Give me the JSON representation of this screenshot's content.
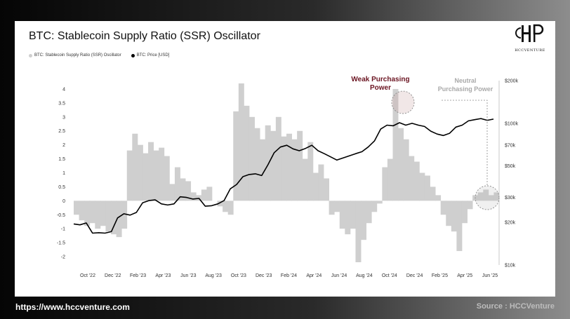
{
  "footer": {
    "url": "https://www.hccventure.com",
    "source": "Source : HCCVenture"
  },
  "brand": {
    "logo_text": "HCCVENTURE"
  },
  "chart_data": {
    "type": "area",
    "title": "BTC: Stablecoin Supply Ratio (SSR) Oscillator",
    "legend": {
      "placement": "top-left"
    },
    "series": [
      {
        "name": "BTC: Stablecoin Supply Ratio (SSR) Oscillator",
        "kind": "area",
        "axis": "left",
        "color": "#cfcfcf"
      },
      {
        "name": "BTC: Price [USD]",
        "kind": "line",
        "axis": "right",
        "color": "#000000"
      }
    ],
    "x_ticks": [
      "Oct '22",
      "Dec '22",
      "Feb '23",
      "Apr '23",
      "Jun '23",
      "Aug '23",
      "Oct '23",
      "Dec '23",
      "Feb '24",
      "Apr '24",
      "Jun '24",
      "Aug '24",
      "Oct '24",
      "Dec '24",
      "Feb '25",
      "Apr '25",
      "Jun '25"
    ],
    "y_left": {
      "ticks": [
        4,
        3.5,
        3,
        2.5,
        2,
        1.5,
        1,
        0.5,
        0,
        -0.5,
        -1,
        -1.5,
        -2
      ],
      "labels": [
        "4",
        "3.5",
        "3",
        "2.5",
        "2",
        "1.5",
        "1",
        "0.5",
        "0",
        "-0.5",
        "-1",
        "-1.5",
        "-2"
      ],
      "range": [
        -2.3,
        4.3
      ]
    },
    "y_right": {
      "scale": "log",
      "ticks": [
        200000,
        100000,
        70000,
        50000,
        30000,
        20000,
        10000
      ],
      "labels": [
        "$200k",
        "$100k",
        "$70k",
        "$50k",
        "$30k",
        "$20k",
        "$10k"
      ],
      "range": [
        10000,
        200000
      ]
    },
    "ssr_values": [
      -0.5,
      -0.7,
      -0.9,
      -0.8,
      -1.0,
      -0.9,
      -1.1,
      -1.2,
      -1.3,
      -1.0,
      1.8,
      2.4,
      2.0,
      1.7,
      2.1,
      1.8,
      1.9,
      1.6,
      0.6,
      1.2,
      0.8,
      0.7,
      0.3,
      0.2,
      0.4,
      0.5,
      0.0,
      -0.2,
      -0.4,
      -0.5,
      3.2,
      4.2,
      3.4,
      3.0,
      2.6,
      2.2,
      2.7,
      2.5,
      3.0,
      2.3,
      2.4,
      2.2,
      2.5,
      1.5,
      2.1,
      1.0,
      1.3,
      0.8,
      -0.5,
      -0.4,
      -1.0,
      -1.2,
      -1.0,
      -2.2,
      -1.4,
      -0.8,
      -0.4,
      -0.1,
      1.2,
      1.5,
      4.0,
      2.6,
      2.2,
      1.6,
      1.4,
      1.0,
      0.9,
      0.5,
      0.2,
      -0.5,
      -0.9,
      -1.1,
      -1.8,
      -0.8,
      -0.3,
      0.2,
      0.3,
      0.4,
      0.2,
      0.3
    ],
    "price_values": [
      19500,
      19200,
      19800,
      16800,
      16900,
      16800,
      17200,
      21500,
      23000,
      22500,
      23500,
      27500,
      28500,
      28800,
      27000,
      26500,
      27000,
      30300,
      30000,
      29200,
      29500,
      26000,
      26200,
      27000,
      28500,
      34500,
      37000,
      42000,
      43500,
      44000,
      42800,
      51000,
      62000,
      68000,
      70000,
      66000,
      64000,
      66500,
      70000,
      64000,
      61000,
      58000,
      55000,
      57000,
      59000,
      61000,
      63000,
      68000,
      75000,
      91000,
      97000,
      96000,
      101000,
      97000,
      100000,
      97000,
      95000,
      88000,
      84000,
      82000,
      85000,
      94000,
      97000,
      104000,
      106000,
      108000,
      105000,
      107000
    ],
    "annotations": [
      {
        "text": "Weak Purchasing Power",
        "lines": [
          "Weak Purchasing",
          "Power"
        ],
        "color": "#6b1522"
      },
      {
        "text": "Neutral Purchasing Power",
        "lines": [
          "Neutral",
          "Purchasing Power"
        ],
        "color": "#a9a9a9"
      }
    ]
  }
}
